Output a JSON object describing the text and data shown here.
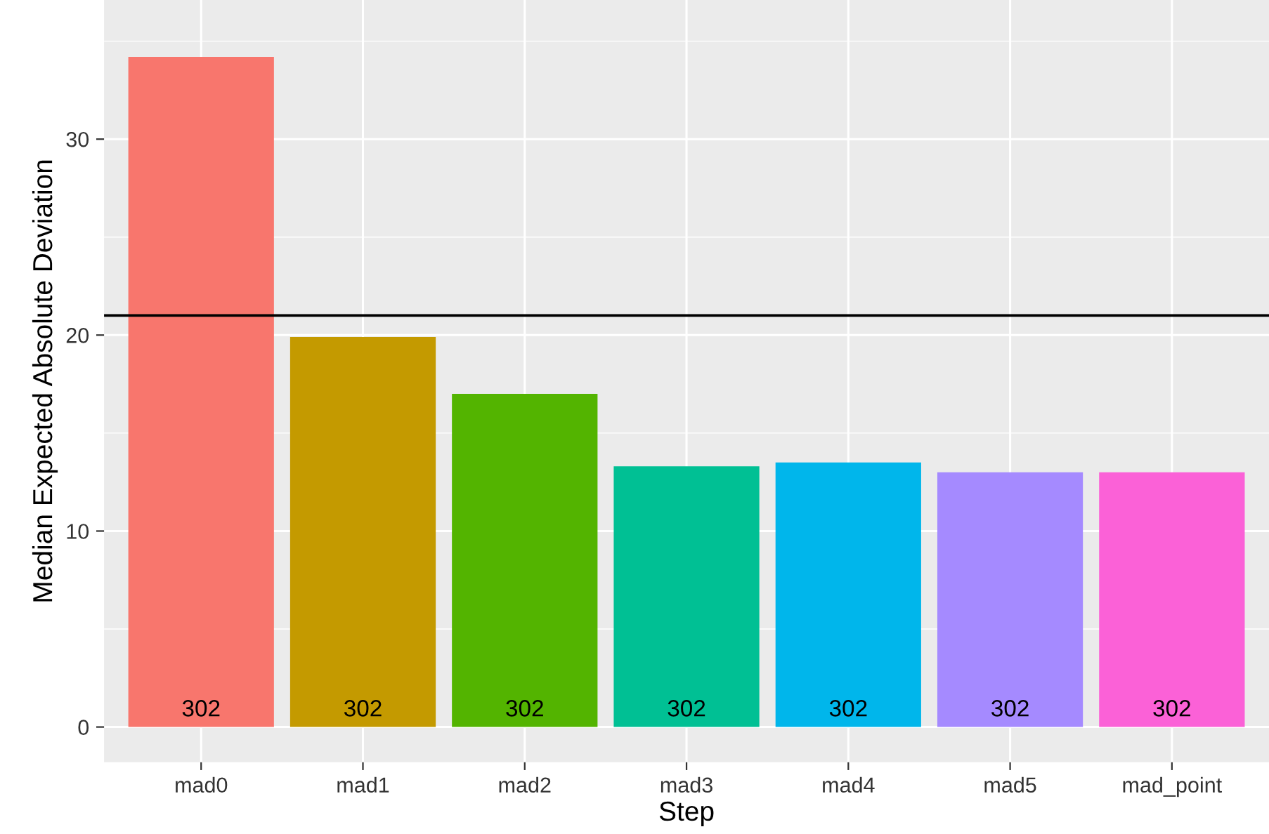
{
  "chart_data": {
    "type": "bar",
    "xlabel": "Step",
    "ylabel": "Median Expected Absolute Deviation",
    "categories": [
      "mad0",
      "mad1",
      "mad2",
      "mad3",
      "mad4",
      "mad5",
      "mad_point"
    ],
    "values": [
      34.2,
      19.9,
      17.0,
      13.3,
      13.5,
      13.0,
      13.0
    ],
    "colors": [
      "#f8766d",
      "#c49a00",
      "#53b400",
      "#00c094",
      "#00b6eb",
      "#a58aff",
      "#fb61d7"
    ],
    "ylim": [
      -1.8,
      37.1
    ],
    "yticks": [
      0,
      10,
      20,
      30
    ],
    "grid": true,
    "ref_lines": [
      {
        "axis": "y",
        "value": 21.0,
        "color": "#000000"
      }
    ],
    "annotations": [
      "302",
      "302",
      "302",
      "302",
      "302",
      "302",
      "302"
    ]
  }
}
